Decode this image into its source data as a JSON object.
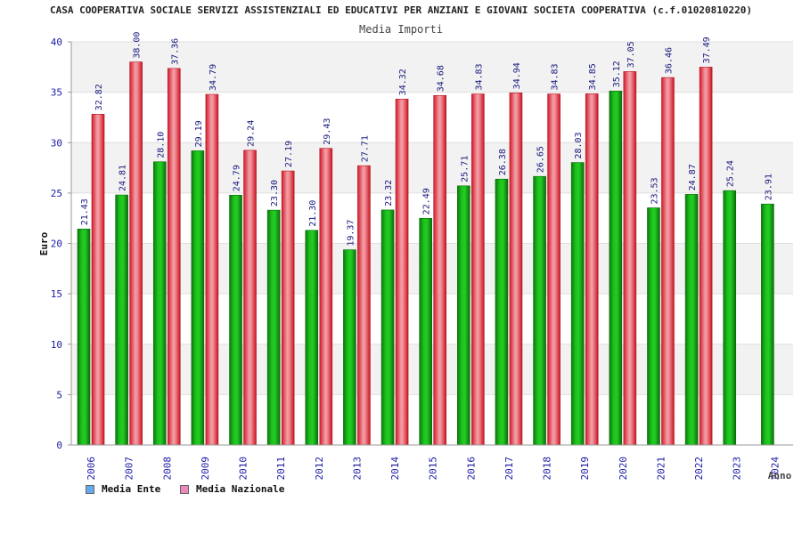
{
  "chart_data": {
    "type": "bar",
    "title": "CASA COOPERATIVA SOCIALE SERVIZI ASSISTENZIALI ED EDUCATIVI PER ANZIANI E GIOVANI SOCIETA COOPERATIVA (c.f.01020810220)",
    "subtitle": "Media Importi",
    "xlabel": "Anno",
    "ylabel": "Euro",
    "ylim": [
      0,
      40
    ],
    "yticks": [
      0,
      5,
      10,
      15,
      20,
      25,
      30,
      35,
      40
    ],
    "grid": true,
    "categories": [
      "2006",
      "2007",
      "2008",
      "2009",
      "2010",
      "2011",
      "2012",
      "2013",
      "2014",
      "2015",
      "2016",
      "2017",
      "2018",
      "2019",
      "2020",
      "2021",
      "2022",
      "2023",
      "2024"
    ],
    "series": [
      {
        "name": "Media Ente",
        "color": "#22bb22",
        "values": [
          21.43,
          24.81,
          28.1,
          29.19,
          24.79,
          23.3,
          21.3,
          19.37,
          23.32,
          22.49,
          25.71,
          26.38,
          26.65,
          28.03,
          35.12,
          23.53,
          24.87,
          25.24,
          23.91
        ],
        "labels": [
          "21.43",
          "24.81",
          "28.10",
          "29.19",
          "24.79",
          "23.30",
          "21.30",
          "19.37",
          "23.32",
          "22.49",
          "25.71",
          "26.38",
          "26.65",
          "28.03",
          "35.12",
          "23.53",
          "24.87",
          "25.24",
          "23.91"
        ]
      },
      {
        "name": "Media Nazionale",
        "color": "#ee2233",
        "values": [
          32.82,
          38.0,
          37.36,
          34.79,
          29.24,
          27.19,
          29.43,
          27.71,
          34.32,
          34.68,
          34.83,
          34.94,
          34.83,
          34.85,
          37.05,
          36.46,
          37.49,
          null,
          null
        ],
        "labels": [
          "32.82",
          "38.00",
          "37.36",
          "34.79",
          "29.24",
          "27.19",
          "29.43",
          "27.71",
          "34.32",
          "34.68",
          "34.83",
          "34.94",
          "34.83",
          "34.85",
          "37.05",
          "36.46",
          "37.49",
          "",
          ""
        ]
      }
    ],
    "legend": {
      "position": "bottom-left",
      "items": [
        {
          "label": "Media Ente",
          "color": "#66aaee"
        },
        {
          "label": "Media Nazionale",
          "color": "#ee88bb"
        }
      ]
    }
  }
}
